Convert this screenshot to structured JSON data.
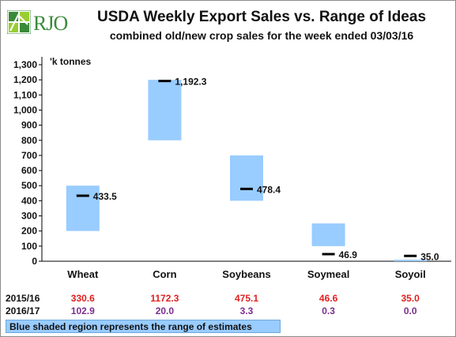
{
  "logo": {
    "text": "RJO"
  },
  "chart_data": {
    "type": "bar",
    "title": "USDA Weekly Export Sales vs. Range of Ideas",
    "subtitle": "combined old/new crop sales for the week ended 03/03/16",
    "ylabel": "'k tonnes",
    "ylim": [
      0,
      1300
    ],
    "yticks": [
      0,
      100,
      200,
      300,
      400,
      500,
      600,
      700,
      800,
      900,
      1000,
      1100,
      1200,
      1300
    ],
    "ytick_labels": [
      "0",
      "100",
      "200",
      "300",
      "400",
      "500",
      "600",
      "700",
      "800",
      "900",
      "1,000",
      "1,100",
      "1,200",
      "1,300"
    ],
    "categories": [
      "Wheat",
      "Corn",
      "Soybeans",
      "Soymeal",
      "Soyoil"
    ],
    "range_low": [
      200,
      800,
      400,
      100,
      0
    ],
    "range_high": [
      500,
      1200,
      700,
      250,
      10
    ],
    "actual": [
      433.5,
      1192.3,
      478.4,
      46.9,
      35.0
    ],
    "actual_labels": [
      "433.5",
      "1,192.3",
      "478.4",
      "46.9",
      "35.0"
    ],
    "grid": false
  },
  "table": {
    "rows": [
      {
        "label": "2015/16",
        "color": "#e02020",
        "values": [
          "330.6",
          "1172.3",
          "475.1",
          "46.6",
          "35.0"
        ]
      },
      {
        "label": "2016/17",
        "color": "#7b2d8e",
        "values": [
          "102.9",
          "20.0",
          "3.3",
          "0.3",
          "0.0"
        ]
      }
    ]
  },
  "note": "Blue shaded region represents the range of estimates",
  "colors": {
    "range_fill": "#99ccff",
    "marker": "#000000",
    "axis": "#000000"
  }
}
